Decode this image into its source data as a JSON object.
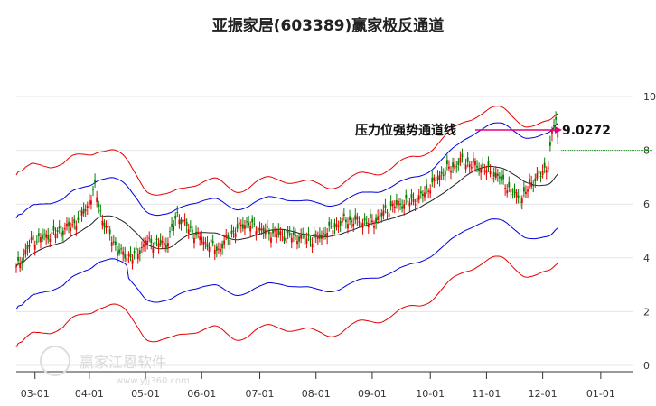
{
  "chart_data": {
    "type": "candlestick",
    "title": "亚振家居(603389)赢家极反通道",
    "x_ticks": [
      "03-01",
      "04-01",
      "05-01",
      "06-01",
      "07-01",
      "08-01",
      "09-01",
      "10-01",
      "11-01",
      "12-01",
      "01-01"
    ],
    "y_ticks": [
      "0",
      "2",
      "4",
      "6",
      "8",
      "10"
    ],
    "ylim": [
      0,
      10.8
    ],
    "annotation": {
      "label": "压力位强势通道线",
      "value": "9.0272"
    },
    "current_price": 8.0,
    "watermark": {
      "text": "赢家江恩软件",
      "url": "www.yjj360.com"
    },
    "colors": {
      "up": "#e60000",
      "down": "#008000",
      "upper_band": "#e60000",
      "upper_mid": "#0000dd",
      "middle": "#222222",
      "lower_mid": "#0000dd",
      "lower_band": "#e60000",
      "arrow": "#e6007e"
    }
  }
}
